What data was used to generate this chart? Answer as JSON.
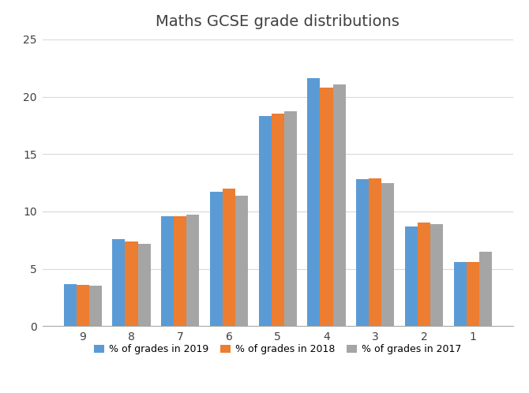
{
  "title": "Maths GCSE grade distributions",
  "categories": [
    "9",
    "8",
    "7",
    "6",
    "5",
    "4",
    "3",
    "2",
    "1"
  ],
  "series": {
    "2019": [
      3.7,
      7.6,
      9.6,
      11.7,
      18.3,
      21.6,
      12.8,
      8.7,
      5.6
    ],
    "2018": [
      3.6,
      7.4,
      9.6,
      12.0,
      18.5,
      20.8,
      12.9,
      9.0,
      5.6
    ],
    "2017": [
      3.5,
      7.2,
      9.7,
      11.4,
      18.7,
      21.1,
      12.5,
      8.9,
      6.5
    ]
  },
  "colors": {
    "2019": "#5B9BD5",
    "2018": "#ED7D31",
    "2017": "#A5A5A5"
  },
  "legend_labels": {
    "2019": "% of grades in 2019",
    "2018": "% of grades in 2018",
    "2017": "% of grades in 2017"
  },
  "ylim": [
    0,
    25
  ],
  "yticks": [
    0,
    5,
    10,
    15,
    20,
    25
  ],
  "background_color": "#FFFFFF",
  "title_fontsize": 14,
  "bar_width": 0.26,
  "grid_color": "#D9D9D9",
  "tick_fontsize": 10,
  "legend_fontsize": 9
}
